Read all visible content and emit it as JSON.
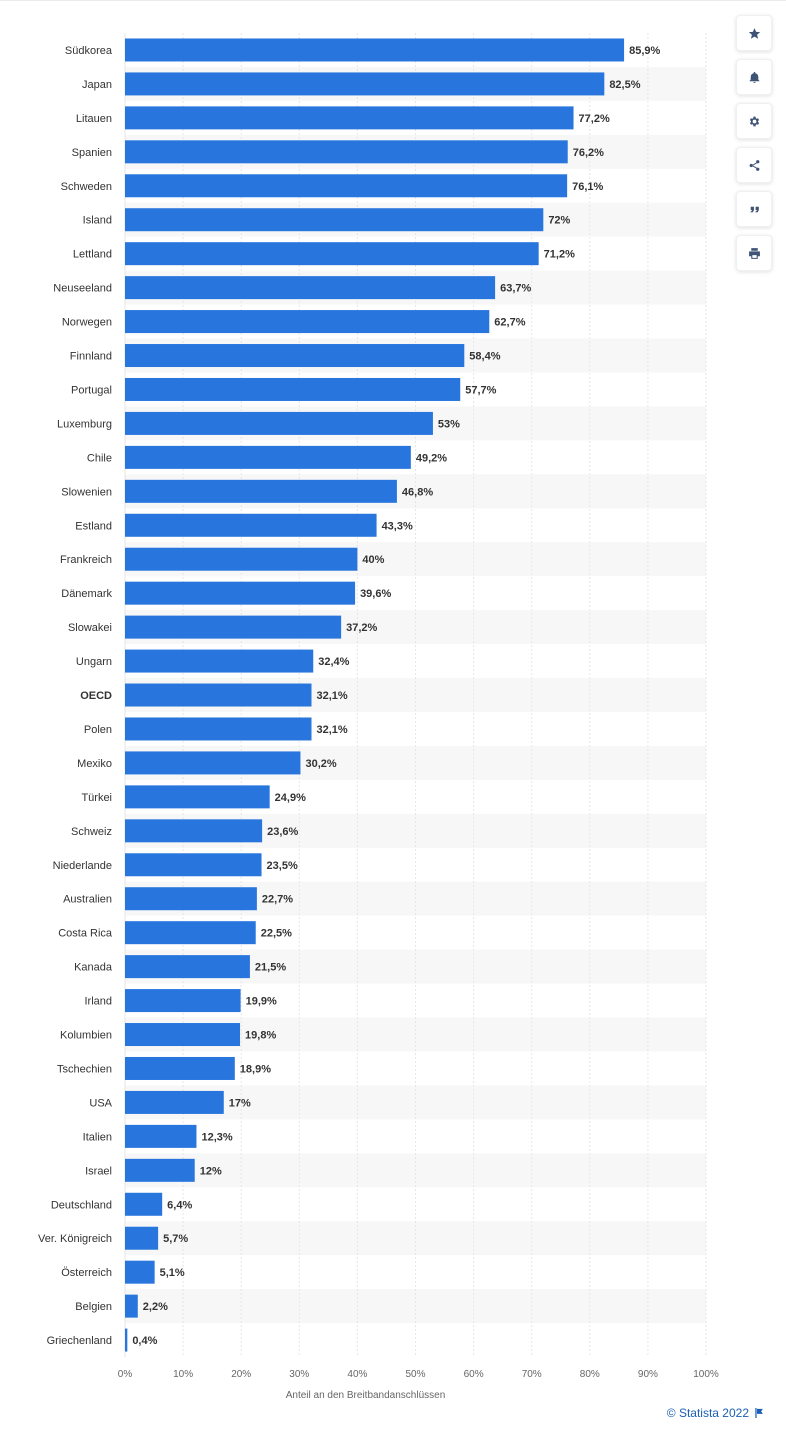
{
  "toolbar": {
    "buttons": [
      {
        "name": "favorite",
        "icon": "star-icon"
      },
      {
        "name": "notification",
        "icon": "bell-icon"
      },
      {
        "name": "settings",
        "icon": "gear-icon"
      },
      {
        "name": "share",
        "icon": "share-icon"
      },
      {
        "name": "cite",
        "icon": "quote-icon"
      },
      {
        "name": "print",
        "icon": "printer-icon"
      }
    ]
  },
  "credit": {
    "text": "© Statista 2022",
    "icon": "flag-icon"
  },
  "colors": {
    "bar": "#2876dd",
    "stripe": "#f7f7f7",
    "grid": "#e6e6e6",
    "text": "#333333",
    "axis_text": "#666666",
    "credit": "#1a5fb4"
  },
  "chart_data": {
    "type": "bar",
    "orientation": "horizontal",
    "title": "",
    "xlabel": "Anteil an den Breitbandanschlüssen",
    "ylabel": "",
    "xlim": [
      0,
      100
    ],
    "xticks": [
      "0%",
      "10%",
      "20%",
      "30%",
      "40%",
      "50%",
      "60%",
      "70%",
      "80%",
      "90%",
      "100%"
    ],
    "grid": true,
    "legend": "none",
    "categories": [
      "Südkorea",
      "Japan",
      "Litauen",
      "Spanien",
      "Schweden",
      "Island",
      "Lettland",
      "Neuseeland",
      "Norwegen",
      "Finnland",
      "Portugal",
      "Luxemburg",
      "Chile",
      "Slowenien",
      "Estland",
      "Frankreich",
      "Dänemark",
      "Slowakei",
      "Ungarn",
      "OECD",
      "Polen",
      "Mexiko",
      "Türkei",
      "Schweiz",
      "Niederlande",
      "Australien",
      "Costa Rica",
      "Kanada",
      "Irland",
      "Kolumbien",
      "Tschechien",
      "USA",
      "Italien",
      "Israel",
      "Deutschland",
      "Ver. Königreich",
      "Österreich",
      "Belgien",
      "Griechenland"
    ],
    "values": [
      85.9,
      82.5,
      77.2,
      76.2,
      76.1,
      72,
      71.2,
      63.7,
      62.7,
      58.4,
      57.7,
      53,
      49.2,
      46.8,
      43.3,
      40,
      39.6,
      37.2,
      32.4,
      32.1,
      32.1,
      30.2,
      24.9,
      23.6,
      23.5,
      22.7,
      22.5,
      21.5,
      19.9,
      19.8,
      18.9,
      17,
      12.3,
      12,
      6.4,
      5.7,
      5.1,
      2.2,
      0.4
    ],
    "value_labels": [
      "85,9%",
      "82,5%",
      "77,2%",
      "76,2%",
      "76,1%",
      "72%",
      "71,2%",
      "63,7%",
      "62,7%",
      "58,4%",
      "57,7%",
      "53%",
      "49,2%",
      "46,8%",
      "43,3%",
      "40%",
      "39,6%",
      "37,2%",
      "32,4%",
      "32,1%",
      "32,1%",
      "30,2%",
      "24,9%",
      "23,6%",
      "23,5%",
      "22,7%",
      "22,5%",
      "21,5%",
      "19,9%",
      "19,8%",
      "18,9%",
      "17%",
      "12,3%",
      "12%",
      "6,4%",
      "5,7%",
      "5,1%",
      "2,2%",
      "0,4%"
    ],
    "highlighted_categories": [
      "OECD"
    ]
  }
}
